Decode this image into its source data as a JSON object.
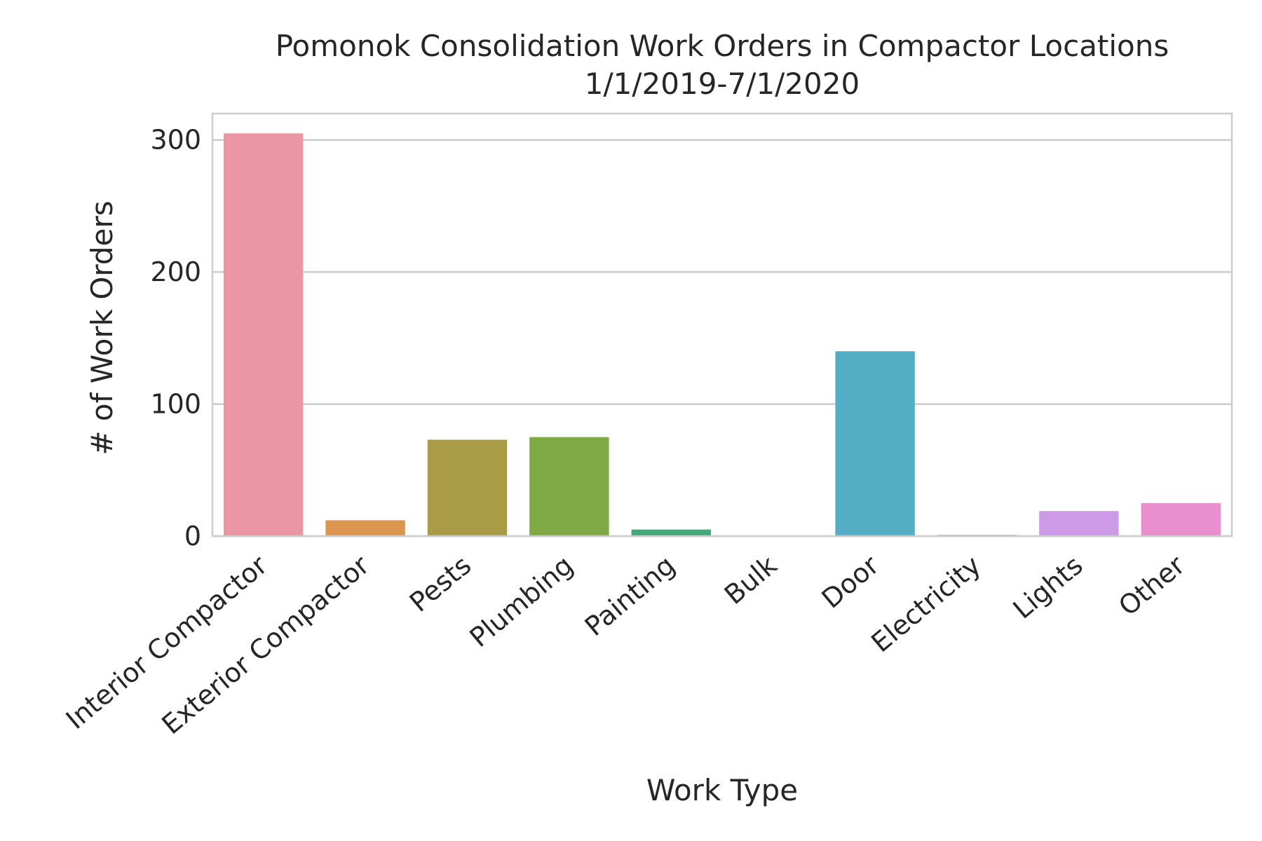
{
  "chart_data": {
    "type": "bar",
    "title": "Pomonok Consolidation Work Orders in Compactor Locations",
    "subtitle": "1/1/2019-7/1/2020",
    "xlabel": "Work Type",
    "ylabel": "# of Work Orders",
    "categories": [
      "Interior Compactor",
      "Exterior Compactor",
      "Pests",
      "Plumbing",
      "Painting",
      "Bulk",
      "Door",
      "Electricity",
      "Lights",
      "Other"
    ],
    "values": [
      305,
      12,
      73,
      75,
      5,
      0,
      140,
      1,
      19,
      25
    ],
    "colors": [
      "#eb96a2",
      "#dc9650",
      "#aa9c46",
      "#7fa945",
      "#45a87a",
      "#47ab9c",
      "#52adc5",
      "#9fb6dc",
      "#cd9ae8",
      "#e98fcf"
    ],
    "ylim": [
      0,
      320
    ],
    "yticks": [
      0,
      100,
      200,
      300
    ],
    "grid": true,
    "legend": "none"
  }
}
